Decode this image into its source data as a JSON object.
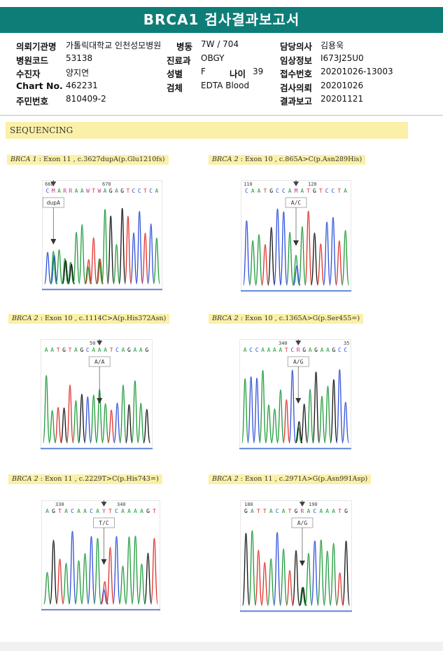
{
  "title": "BRCA1 검사결과보고서",
  "info": {
    "rows": [
      [
        {
          "label": "의뢰기관명",
          "value": "가톨릭대학교 인천성모병원"
        },
        {
          "label": "병동",
          "value": "7W / 704"
        },
        {
          "label": "담당의사",
          "value": "김용욱"
        }
      ],
      [
        {
          "label": "병원코드",
          "value": "53138"
        },
        {
          "label": "진료과",
          "value": "OBGY"
        },
        {
          "label": "임상정보",
          "value": "I673J25U0"
        }
      ],
      [
        {
          "label": "수진자",
          "value": "양지연"
        },
        {
          "label": "성별",
          "value": "F"
        },
        {
          "label": "접수번호",
          "value": "20201026-13003"
        }
      ],
      [
        {
          "label": "Chart No.",
          "value": "462231"
        },
        {
          "label": "검체",
          "value": "EDTA Blood"
        },
        {
          "label": "검사의뢰",
          "value": "20201026"
        }
      ],
      [
        {
          "label": "주민번호",
          "value": "810409-2"
        },
        {
          "label": "",
          "value": ""
        },
        {
          "label": "결과보고",
          "value": "20201121"
        }
      ]
    ],
    "age": {
      "label": "나이",
      "value": "39"
    }
  },
  "section_title": "SEQUENCING",
  "panels": [
    {
      "gene": "BRCA 1",
      "detail": " : Exon 11 , c.3627dupA(p.Glu1210fs)",
      "pos_left": "660",
      "pos_right": "670",
      "sequence": "CMARRAAWTWAGAGTCCTCA",
      "call": "dupA"
    },
    {
      "gene": "BRCA 2",
      "detail": " : Exon 10 , c.865A>C(p.Asn289His)",
      "pos_left": "110",
      "pos_right": "120",
      "sequence": "CAATGCCAMATGTCCTA",
      "call": "A/C"
    },
    {
      "gene": "BRCA 2",
      "detail": " : Exon 10 , c.1114C>A(p.His372Asn)",
      "pos_left": "",
      "pos_right": "50",
      "sequence": "AATGTAGCAAATCAGAAG",
      "call": "A/A"
    },
    {
      "gene": "BRCA 2",
      "detail": " : Exon 10 , c.1365A>G(p.Ser455=)",
      "pos_left": "340",
      "pos_right": "35",
      "sequence": "ACCAAAATCRGAGAAGCC",
      "call": "A/G"
    },
    {
      "gene": "BRCA 2",
      "detail": " : Exon 11 , c.2229T>C(p.His743=)",
      "pos_left": "330",
      "pos_right": "340",
      "sequence": "AGTACAACAYTCAAAAGT",
      "call": "T/C"
    },
    {
      "gene": "BRCA 2",
      "detail": " : Exon 11 , c.2971A>G(p.Asn991Asp)",
      "pos_left": "180",
      "pos_right": "190",
      "sequence": "GATTACATGRACAAATG",
      "call": "A/G"
    }
  ]
}
